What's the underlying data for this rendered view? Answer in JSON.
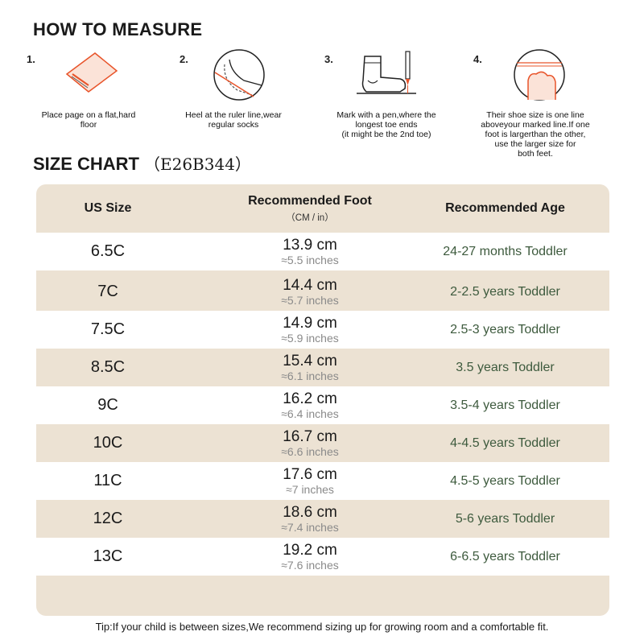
{
  "measure": {
    "title": "HOW TO MEASURE",
    "steps": [
      {
        "num": "1.",
        "icon": "paper-on-floor-icon",
        "text": "Place page on a flat,hard\nfloor"
      },
      {
        "num": "2.",
        "icon": "heel-on-ruler-icon",
        "text": "Heel at the ruler line,wear\nregular socks"
      },
      {
        "num": "3.",
        "icon": "sock-and-pen-icon",
        "text": "Mark with a pen,where the\nlongest toe ends\n(it might be the 2nd toe)"
      },
      {
        "num": "4.",
        "icon": "shoe-size-line-icon",
        "text": "Their shoe size is one line\naboveyour marked line.If one\nfoot is largerthan the other,\nuse the larger size for\nboth feet."
      }
    ]
  },
  "chart": {
    "title": "SIZE CHART",
    "code": "（E26B344）",
    "headers": {
      "size": "US Size",
      "foot": "Recommended Foot",
      "foot_sub": "（CM / in）",
      "age": "Recommended Age"
    },
    "rows": [
      {
        "size": "6.5C",
        "cm": "13.9 cm",
        "inch": "≈5.5 inches",
        "age": "24-27 months Toddler"
      },
      {
        "size": "7C",
        "cm": "14.4 cm",
        "inch": "≈5.7 inches",
        "age": "2-2.5 years Toddler"
      },
      {
        "size": "7.5C",
        "cm": "14.9 cm",
        "inch": "≈5.9 inches",
        "age": "2.5-3 years Toddler"
      },
      {
        "size": "8.5C",
        "cm": "15.4 cm",
        "inch": "≈6.1 inches",
        "age": "3.5 years Toddler"
      },
      {
        "size": "9C",
        "cm": "16.2 cm",
        "inch": "≈6.4 inches",
        "age": "3.5-4 years Toddler"
      },
      {
        "size": "10C",
        "cm": "16.7 cm",
        "inch": "≈6.6 inches",
        "age": "4-4.5 years Toddler"
      },
      {
        "size": "11C",
        "cm": "17.6 cm",
        "inch": "≈7 inches",
        "age": "4.5-5 years Toddler"
      },
      {
        "size": "12C",
        "cm": "18.6 cm",
        "inch": "≈7.4 inches",
        "age": "5-6 years Toddler"
      },
      {
        "size": "13C",
        "cm": "19.2 cm",
        "inch": "≈7.6 inches",
        "age": "6-6.5 years Toddler"
      }
    ]
  },
  "tip": "Tip:If your child is between sizes,We recommend sizing up for growing room and a comfortable fit.",
  "colors": {
    "accent": "#e8542a",
    "table_band": "#ece2d3",
    "age_text": "#3d5a3d"
  }
}
